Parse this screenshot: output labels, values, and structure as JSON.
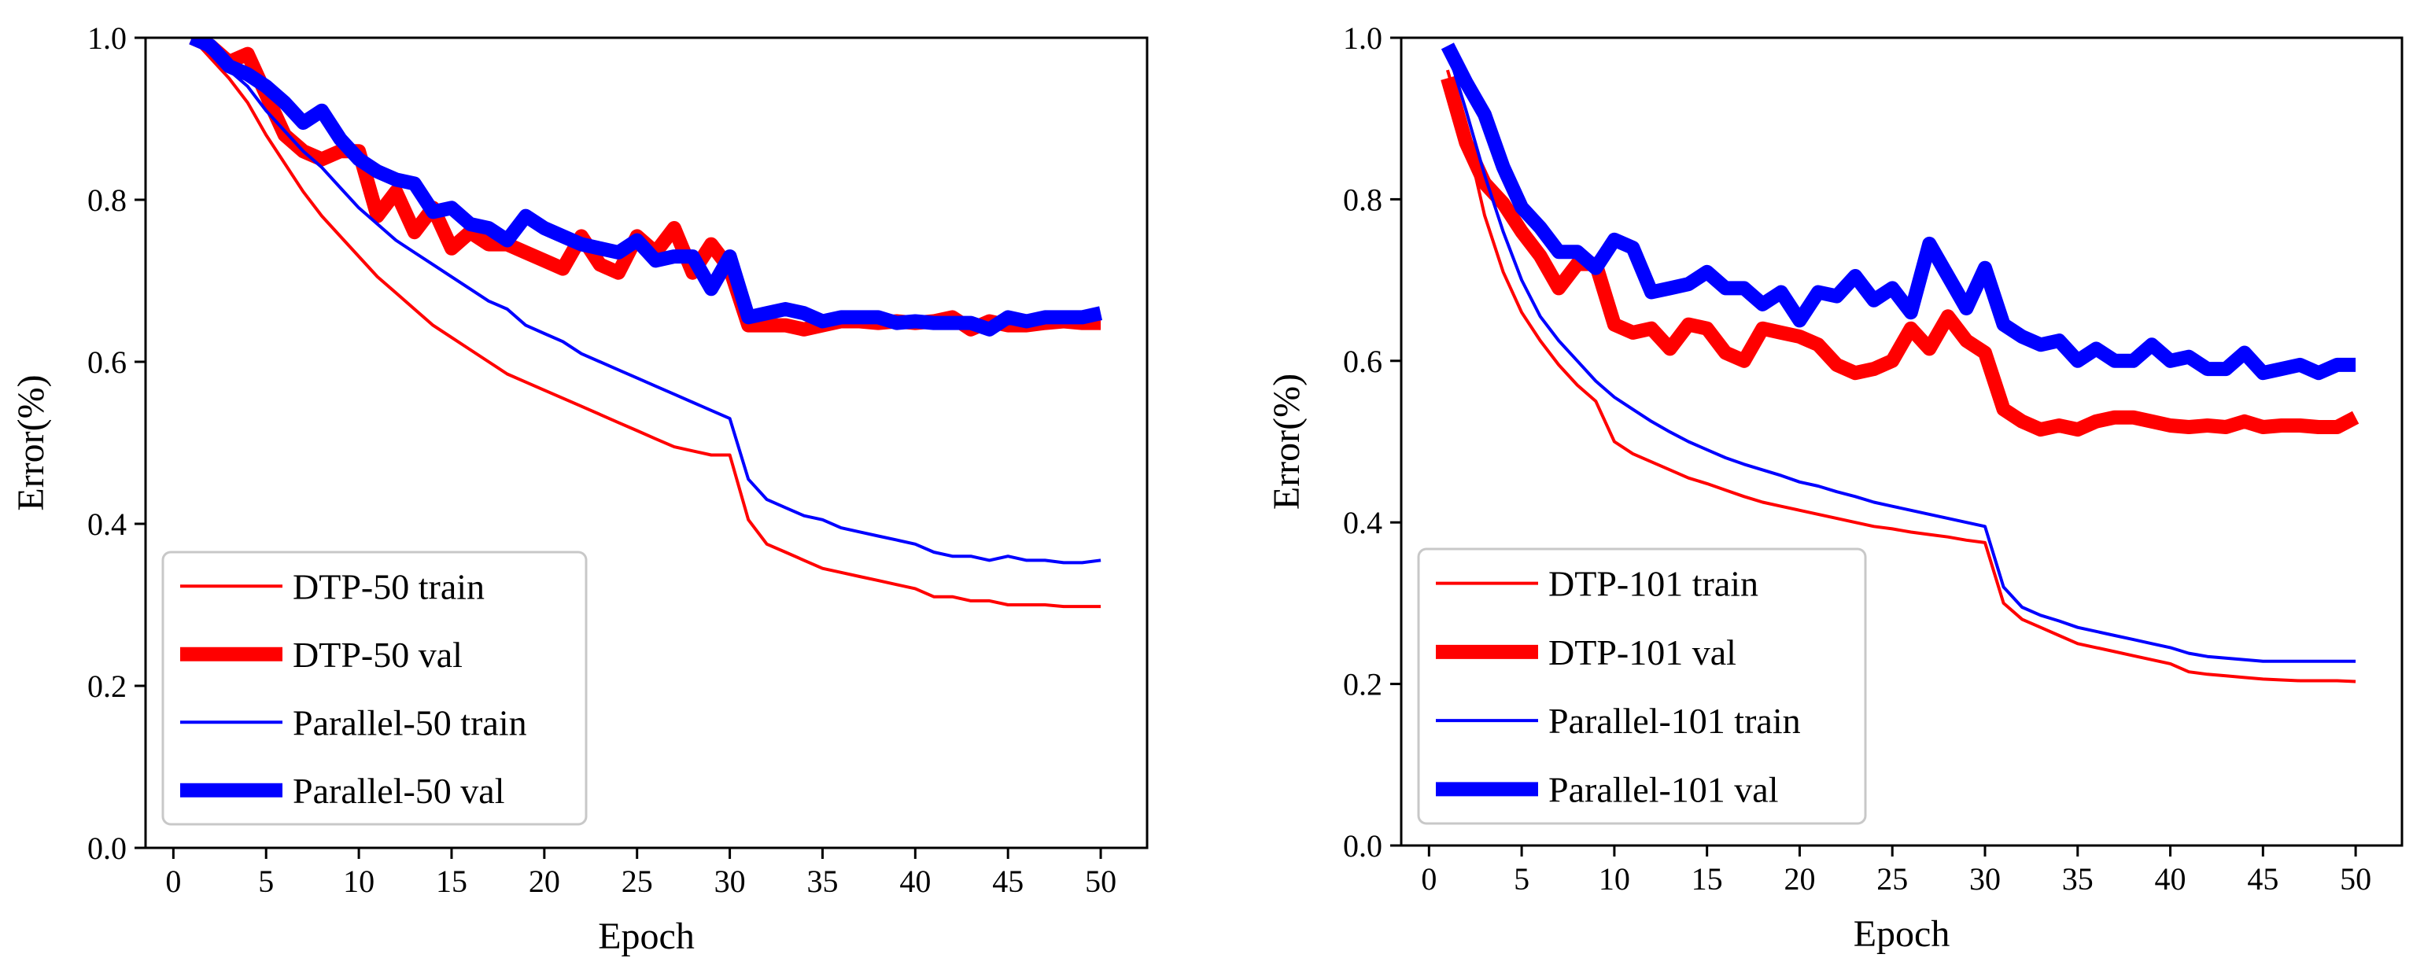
{
  "chart_data": [
    {
      "type": "line",
      "title": "",
      "xlabel": "Epoch",
      "ylabel": "Error(%)",
      "xlim": [
        -1.5,
        52.5
      ],
      "ylim": [
        0.0,
        1.0
      ],
      "xticks": [
        0,
        5,
        10,
        15,
        20,
        25,
        30,
        35,
        40,
        45,
        50
      ],
      "yticks": [
        0.0,
        0.2,
        0.4,
        0.6,
        0.8,
        1.0
      ],
      "xtick_labels": [
        "0",
        "5",
        "10",
        "15",
        "20",
        "25",
        "30",
        "35",
        "40",
        "45",
        "50"
      ],
      "ytick_labels": [
        "0.0",
        "0.2",
        "0.4",
        "0.6",
        "0.8",
        "1.0"
      ],
      "legend_position": "lower-left",
      "x": [
        1,
        2,
        3,
        4,
        5,
        6,
        7,
        8,
        9,
        10,
        11,
        12,
        13,
        14,
        15,
        16,
        17,
        18,
        19,
        20,
        21,
        22,
        23,
        24,
        25,
        26,
        27,
        28,
        29,
        30,
        31,
        32,
        33,
        34,
        35,
        36,
        37,
        38,
        39,
        40,
        41,
        42,
        43,
        44,
        45,
        46,
        47,
        48,
        49,
        50
      ],
      "series": [
        {
          "name": "DTP-50 train",
          "color": "#ff0000",
          "weight": "thin",
          "values": [
            1.0,
            0.975,
            0.95,
            0.92,
            0.88,
            0.845,
            0.81,
            0.78,
            0.755,
            0.73,
            0.705,
            0.685,
            0.665,
            0.645,
            0.63,
            0.615,
            0.6,
            0.585,
            0.575,
            0.565,
            0.555,
            0.545,
            0.535,
            0.525,
            0.515,
            0.505,
            0.495,
            0.49,
            0.485,
            0.485,
            0.405,
            0.375,
            0.365,
            0.355,
            0.345,
            0.34,
            0.335,
            0.33,
            0.325,
            0.32,
            0.31,
            0.31,
            0.305,
            0.305,
            0.3,
            0.3,
            0.3,
            0.298,
            0.298,
            0.298
          ]
        },
        {
          "name": "DTP-50 val",
          "color": "#ff0000",
          "weight": "thick",
          "values": [
            1.0,
            0.99,
            0.97,
            0.98,
            0.93,
            0.88,
            0.86,
            0.85,
            0.86,
            0.86,
            0.78,
            0.81,
            0.76,
            0.79,
            0.74,
            0.76,
            0.745,
            0.745,
            0.735,
            0.725,
            0.715,
            0.755,
            0.72,
            0.71,
            0.755,
            0.735,
            0.765,
            0.71,
            0.745,
            0.715,
            0.645,
            0.645,
            0.645,
            0.64,
            0.645,
            0.65,
            0.65,
            0.648,
            0.65,
            0.648,
            0.65,
            0.655,
            0.64,
            0.65,
            0.645,
            0.645,
            0.648,
            0.65,
            0.648,
            0.648
          ]
        },
        {
          "name": "Parallel-50 train",
          "color": "#0000ff",
          "weight": "thin",
          "values": [
            1.0,
            0.98,
            0.96,
            0.94,
            0.91,
            0.885,
            0.86,
            0.84,
            0.815,
            0.79,
            0.77,
            0.75,
            0.735,
            0.72,
            0.705,
            0.69,
            0.675,
            0.665,
            0.645,
            0.635,
            0.625,
            0.61,
            0.6,
            0.59,
            0.58,
            0.57,
            0.56,
            0.55,
            0.54,
            0.53,
            0.455,
            0.43,
            0.42,
            0.41,
            0.405,
            0.395,
            0.39,
            0.385,
            0.38,
            0.375,
            0.365,
            0.36,
            0.36,
            0.355,
            0.36,
            0.355,
            0.355,
            0.352,
            0.352,
            0.355
          ]
        },
        {
          "name": "Parallel-50 val",
          "color": "#0000ff",
          "weight": "thick",
          "values": [
            1.0,
            0.99,
            0.965,
            0.955,
            0.94,
            0.92,
            0.895,
            0.91,
            0.875,
            0.85,
            0.835,
            0.825,
            0.82,
            0.785,
            0.79,
            0.77,
            0.765,
            0.75,
            0.78,
            0.765,
            0.755,
            0.745,
            0.74,
            0.735,
            0.75,
            0.725,
            0.73,
            0.73,
            0.69,
            0.73,
            0.655,
            0.66,
            0.665,
            0.66,
            0.65,
            0.655,
            0.655,
            0.655,
            0.648,
            0.65,
            0.648,
            0.648,
            0.648,
            0.64,
            0.655,
            0.65,
            0.655,
            0.655,
            0.655,
            0.66
          ]
        }
      ]
    },
    {
      "type": "line",
      "title": "",
      "xlabel": "Epoch",
      "ylabel": "Error(%)",
      "xlim": [
        -1.5,
        52.5
      ],
      "ylim": [
        0.0,
        1.0
      ],
      "xticks": [
        0,
        5,
        10,
        15,
        20,
        25,
        30,
        35,
        40,
        45,
        50
      ],
      "yticks": [
        0.0,
        0.2,
        0.4,
        0.6,
        0.8,
        1.0
      ],
      "xtick_labels": [
        "0",
        "5",
        "10",
        "15",
        "20",
        "25",
        "30",
        "35",
        "40",
        "45",
        "50"
      ],
      "ytick_labels": [
        "0.0",
        "0.2",
        "0.4",
        "0.6",
        "0.8",
        "1.0"
      ],
      "legend_position": "lower-left",
      "x": [
        1,
        2,
        3,
        4,
        5,
        6,
        7,
        8,
        9,
        10,
        11,
        12,
        13,
        14,
        15,
        16,
        17,
        18,
        19,
        20,
        21,
        22,
        23,
        24,
        25,
        26,
        27,
        28,
        29,
        30,
        31,
        32,
        33,
        34,
        35,
        36,
        37,
        38,
        39,
        40,
        41,
        42,
        43,
        44,
        45,
        46,
        47,
        48,
        49,
        50
      ],
      "series": [
        {
          "name": "DTP-101 train",
          "color": "#ff0000",
          "weight": "thin",
          "values": [
            0.96,
            0.88,
            0.78,
            0.71,
            0.66,
            0.625,
            0.595,
            0.57,
            0.55,
            0.5,
            0.485,
            0.475,
            0.465,
            0.455,
            0.448,
            0.44,
            0.432,
            0.425,
            0.42,
            0.415,
            0.41,
            0.405,
            0.4,
            0.395,
            0.392,
            0.388,
            0.385,
            0.382,
            0.378,
            0.375,
            0.3,
            0.28,
            0.27,
            0.26,
            0.25,
            0.245,
            0.24,
            0.235,
            0.23,
            0.225,
            0.215,
            0.212,
            0.21,
            0.208,
            0.206,
            0.205,
            0.204,
            0.204,
            0.204,
            0.203
          ]
        },
        {
          "name": "DTP-101 val",
          "color": "#ff0000",
          "weight": "thick",
          "values": [
            0.95,
            0.87,
            0.82,
            0.795,
            0.76,
            0.73,
            0.69,
            0.72,
            0.72,
            0.645,
            0.635,
            0.64,
            0.615,
            0.645,
            0.64,
            0.61,
            0.6,
            0.64,
            0.635,
            0.63,
            0.62,
            0.595,
            0.585,
            0.59,
            0.6,
            0.64,
            0.615,
            0.655,
            0.625,
            0.61,
            0.54,
            0.525,
            0.515,
            0.52,
            0.515,
            0.525,
            0.53,
            0.53,
            0.525,
            0.52,
            0.518,
            0.52,
            0.518,
            0.525,
            0.518,
            0.52,
            0.52,
            0.518,
            0.518,
            0.53
          ]
        },
        {
          "name": "Parallel-101 train",
          "color": "#0000ff",
          "weight": "thin",
          "values": [
            0.985,
            0.91,
            0.83,
            0.76,
            0.7,
            0.655,
            0.625,
            0.6,
            0.575,
            0.555,
            0.54,
            0.525,
            0.512,
            0.5,
            0.49,
            0.48,
            0.472,
            0.465,
            0.458,
            0.45,
            0.445,
            0.438,
            0.432,
            0.425,
            0.42,
            0.415,
            0.41,
            0.405,
            0.4,
            0.395,
            0.32,
            0.295,
            0.285,
            0.278,
            0.27,
            0.265,
            0.26,
            0.255,
            0.25,
            0.245,
            0.238,
            0.234,
            0.232,
            0.23,
            0.228,
            0.228,
            0.228,
            0.228,
            0.228,
            0.228
          ]
        },
        {
          "name": "Parallel-101 val",
          "color": "#0000ff",
          "weight": "thick",
          "values": [
            0.99,
            0.945,
            0.905,
            0.84,
            0.79,
            0.765,
            0.735,
            0.735,
            0.715,
            0.75,
            0.74,
            0.685,
            0.69,
            0.695,
            0.71,
            0.69,
            0.69,
            0.67,
            0.685,
            0.65,
            0.685,
            0.68,
            0.705,
            0.675,
            0.69,
            0.66,
            0.745,
            0.705,
            0.665,
            0.715,
            0.645,
            0.63,
            0.62,
            0.625,
            0.6,
            0.615,
            0.6,
            0.6,
            0.62,
            0.6,
            0.605,
            0.59,
            0.59,
            0.61,
            0.585,
            0.59,
            0.595,
            0.585,
            0.595,
            0.595
          ]
        }
      ]
    }
  ]
}
